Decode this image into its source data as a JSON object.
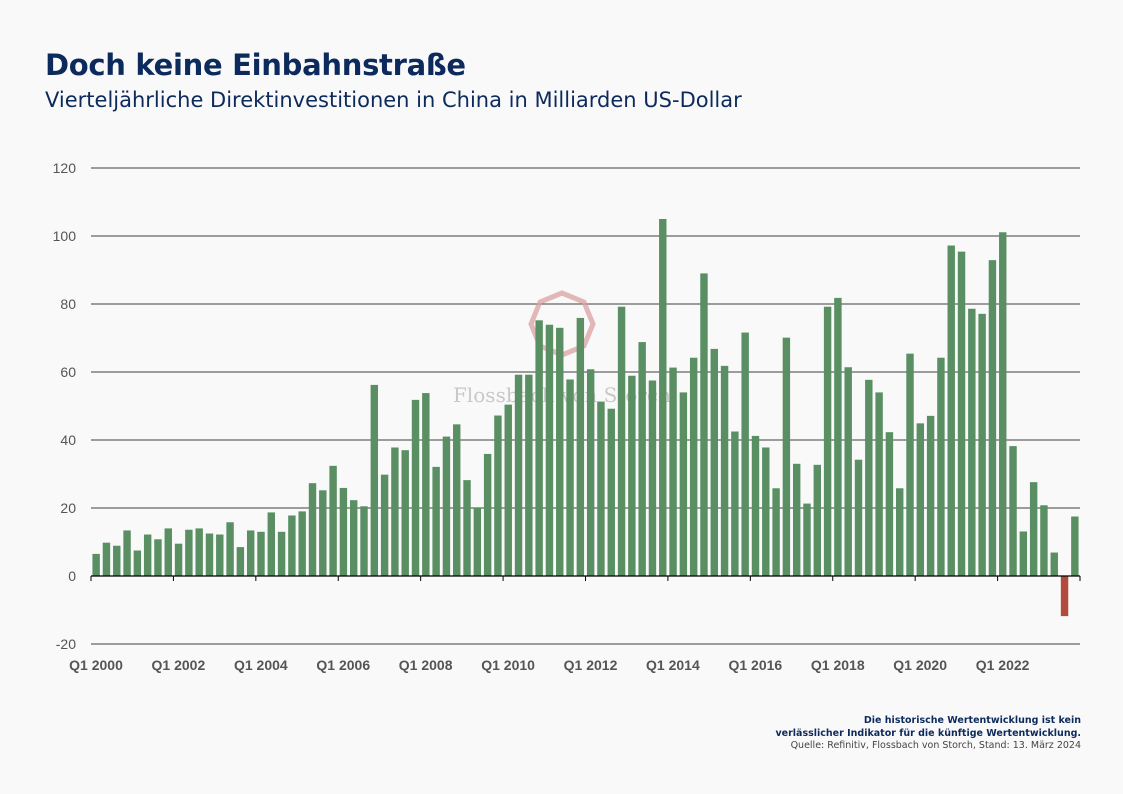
{
  "header": {
    "title": "Doch keine Einbahnstraße",
    "subtitle": "Vierteljährliche Direktinvestitionen in China in Milliarden US-Dollar"
  },
  "watermark": "Flossbach von Storch",
  "footer": {
    "disclaimer_line1": "Die historische Wertentwicklung ist kein",
    "disclaimer_line2": "verlässlicher Indikator für die künftige Wertentwicklung.",
    "source": "Quelle: Refinitiv, Flossbach von Storch, Stand: 13. März 2024"
  },
  "colors": {
    "positive_bar": "#5a8f63",
    "negative_bar": "#b24a3e",
    "title": "#0d2a5c",
    "axis_text": "#555555",
    "grid": "#000000"
  },
  "chart_data": {
    "type": "bar",
    "title": "",
    "xlabel": "",
    "ylabel": "",
    "ylim": [
      -20,
      120
    ],
    "yticks": [
      -20,
      0,
      20,
      40,
      60,
      80,
      100,
      120
    ],
    "grid": true,
    "legend": "none",
    "categories": [
      "Q1 2000",
      "Q2 2000",
      "Q3 2000",
      "Q4 2000",
      "Q1 2001",
      "Q2 2001",
      "Q3 2001",
      "Q4 2001",
      "Q1 2002",
      "Q2 2002",
      "Q3 2002",
      "Q4 2002",
      "Q1 2003",
      "Q2 2003",
      "Q3 2003",
      "Q4 2003",
      "Q1 2004",
      "Q2 2004",
      "Q3 2004",
      "Q4 2004",
      "Q1 2005",
      "Q2 2005",
      "Q3 2005",
      "Q4 2005",
      "Q1 2006",
      "Q2 2006",
      "Q3 2006",
      "Q4 2006",
      "Q1 2007",
      "Q2 2007",
      "Q3 2007",
      "Q4 2007",
      "Q1 2008",
      "Q2 2008",
      "Q3 2008",
      "Q4 2008",
      "Q1 2009",
      "Q2 2009",
      "Q3 2009",
      "Q4 2009",
      "Q1 2010",
      "Q2 2010",
      "Q3 2010",
      "Q4 2010",
      "Q1 2011",
      "Q2 2011",
      "Q3 2011",
      "Q4 2011",
      "Q1 2012",
      "Q2 2012",
      "Q3 2012",
      "Q4 2012",
      "Q1 2013",
      "Q2 2013",
      "Q3 2013",
      "Q4 2013",
      "Q1 2014",
      "Q2 2014",
      "Q3 2014",
      "Q4 2014",
      "Q1 2015",
      "Q2 2015",
      "Q3 2015",
      "Q4 2015",
      "Q1 2016",
      "Q2 2016",
      "Q3 2016",
      "Q4 2016",
      "Q1 2017",
      "Q2 2017",
      "Q3 2017",
      "Q4 2017",
      "Q1 2018",
      "Q2 2018",
      "Q3 2018",
      "Q4 2018",
      "Q1 2019",
      "Q2 2019",
      "Q3 2019",
      "Q4 2019",
      "Q1 2020",
      "Q2 2020",
      "Q3 2020",
      "Q4 2020",
      "Q1 2021",
      "Q2 2021",
      "Q3 2021",
      "Q4 2021",
      "Q1 2022",
      "Q2 2022",
      "Q3 2022",
      "Q4 2022",
      "Q1 2023",
      "Q2 2023",
      "Q3 2023",
      "Q4 2023"
    ],
    "x_tick_labels": [
      "Q1 2000",
      "Q1 2002",
      "Q1 2004",
      "Q1 2006",
      "Q1 2008",
      "Q1 2010",
      "Q1 2012",
      "Q1 2014",
      "Q1 2016",
      "Q1 2018",
      "Q1 2020",
      "Q1 2022"
    ],
    "values": [
      6.5,
      9.8,
      8.9,
      13.4,
      7.5,
      12.2,
      10.8,
      14.0,
      9.5,
      13.6,
      14.0,
      12.5,
      12.2,
      15.8,
      8.5,
      13.4,
      13.0,
      18.7,
      13.0,
      17.8,
      19.0,
      27.3,
      25.2,
      32.4,
      25.9,
      22.3,
      20.5,
      56.2,
      29.8,
      37.8,
      37.0,
      51.8,
      53.8,
      32.1,
      41.0,
      44.6,
      28.2,
      20.0,
      35.9,
      47.2,
      50.4,
      59.2,
      59.2,
      75.2,
      73.9,
      73.0,
      57.8,
      75.9,
      60.8,
      51.3,
      49.2,
      79.2,
      58.9,
      68.8,
      57.5,
      105.0,
      61.3,
      54.0,
      64.2,
      89.0,
      66.8,
      61.8,
      42.5,
      71.6,
      41.2,
      37.8,
      25.8,
      70.1,
      33.0,
      21.3,
      32.7,
      79.2,
      81.8,
      61.4,
      34.2,
      57.7,
      54.0,
      42.3,
      25.8,
      65.4,
      44.9,
      47.1,
      64.2,
      97.2,
      95.4,
      78.6,
      77.1,
      92.9,
      101.1,
      38.2,
      13.1,
      27.6,
      20.8,
      6.9,
      -11.8,
      17.5
    ]
  }
}
